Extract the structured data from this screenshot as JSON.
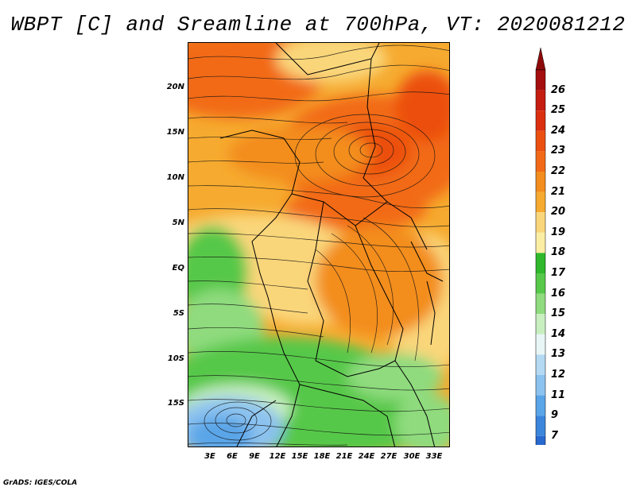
{
  "title": "WBPT [C] and Sreamline at 700hPa, VT: 2020081212",
  "footer": "GrADS: IGES/COLA",
  "map": {
    "variable": "Wet-bulb potential temperature",
    "units": "C",
    "level": "700hPa",
    "valid_time": "2020081212",
    "lat_labels": [
      "20N",
      "15N",
      "10N",
      "5N",
      "EQ",
      "5S",
      "10S",
      "15S"
    ],
    "lon_labels": [
      "3E",
      "6E",
      "9E",
      "12E",
      "15E",
      "18E",
      "21E",
      "24E",
      "27E",
      "30E",
      "33E"
    ]
  },
  "colorbar": {
    "labels": [
      "26",
      "25",
      "24",
      "23",
      "22",
      "21",
      "20",
      "19",
      "18",
      "17",
      "16",
      "15",
      "14",
      "13",
      "12",
      "11",
      "9",
      "7"
    ],
    "colors": [
      "#a50f0f",
      "#c51d10",
      "#db2f0f",
      "#ec5011",
      "#f26a18",
      "#f38d1e",
      "#f6aa2f",
      "#fad67a",
      "#fbeea3",
      "#2fb82b",
      "#57c84a",
      "#8fdb7e",
      "#c8efc0",
      "#e9f6f6",
      "#b3d9f3",
      "#8cc2ef",
      "#5aa5e8",
      "#3b86dc",
      "#2869cf"
    ],
    "top_arrow_color": "#8e0a0a",
    "bottom_arrow_color": "#2a5fd1"
  }
}
